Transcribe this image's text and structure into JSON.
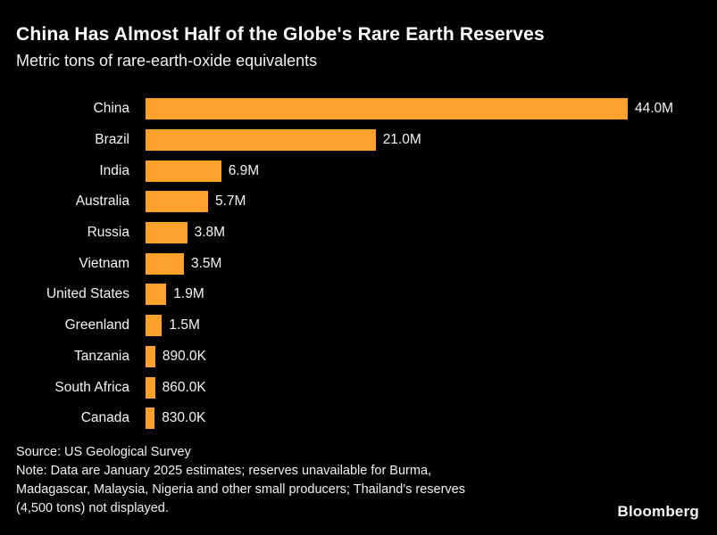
{
  "header": {
    "title": "China Has Almost Half of the Globe's Rare Earth Reserves",
    "subtitle": "Metric tons of rare-earth-oxide equivalents"
  },
  "chart_data": {
    "type": "bar",
    "orientation": "horizontal",
    "title": "China Has Almost Half of the Globe's Rare Earth Reserves",
    "subtitle": "Metric tons of rare-earth-oxide equivalents",
    "categories": [
      "China",
      "Brazil",
      "India",
      "Australia",
      "Russia",
      "Vietnam",
      "United States",
      "Greenland",
      "Tanzania",
      "South Africa",
      "Canada"
    ],
    "values_million_tons": [
      44.0,
      21.0,
      6.9,
      5.7,
      3.8,
      3.5,
      1.9,
      1.5,
      0.89,
      0.86,
      0.83
    ],
    "value_labels": [
      "44.0M",
      "21.0M",
      "6.9M",
      "5.7M",
      "3.8M",
      "3.5M",
      "1.9M",
      "1.5M",
      "890.0K",
      "860.0K",
      "830.0K"
    ],
    "xlabel": "",
    "ylabel": "",
    "xlim": [
      0,
      44
    ],
    "unit": "metric tons of rare-earth-oxide equivalents",
    "legend": false,
    "grid": false
  },
  "footer": {
    "source": "Source: US Geological Survey",
    "note_lines": [
      "Note: Data are January 2025 estimates; reserves unavailable for Burma,",
      "Madagascar, Malaysia, Nigeria and other small producers; Thailand's reserves",
      "(4,500 tons) not displayed."
    ],
    "brand": "Bloomberg"
  },
  "colors": {
    "background": "#000000",
    "bar": "#FBA12D",
    "text": "#FFFFFF"
  }
}
